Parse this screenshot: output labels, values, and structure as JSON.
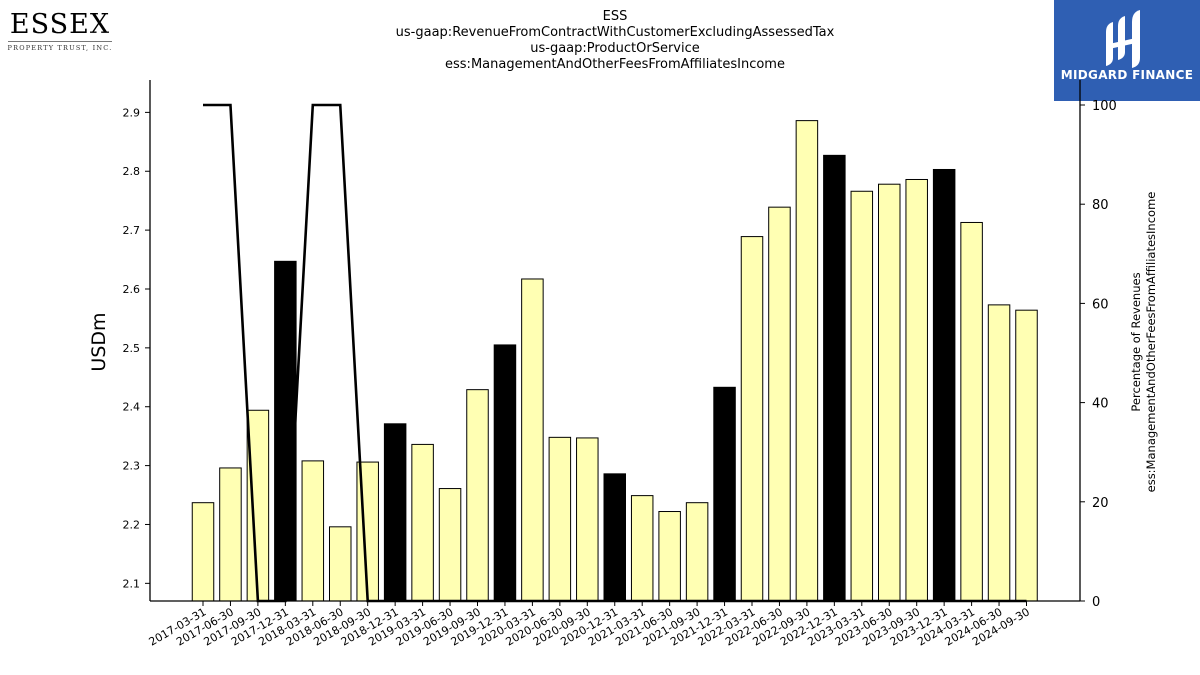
{
  "logos": {
    "left": {
      "wordmark": "ESSEX",
      "tagline": "PROPERTY TRUST, INC."
    },
    "right": {
      "brand": "MIDGARD FINANCE",
      "background": "#2f5fb3"
    }
  },
  "chart_data": {
    "type": "bar",
    "title_lines": [
      "ESS",
      "us-gaap:RevenueFromContractWithCustomerExcludingAssessedTax",
      "us-gaap:ProductOrService",
      "ess:ManagementAndOtherFeesFromAffiliatesIncome"
    ],
    "ylabel": "USDm",
    "y2label_lines": [
      "Percentage of Revenues",
      "ess:ManagementAndOtherFeesFromAffiliatesIncome"
    ],
    "ylim": [
      2.07,
      2.955
    ],
    "y2lim": [
      0,
      100
    ],
    "yticks": [
      2.1,
      2.2,
      2.3,
      2.4,
      2.5,
      2.6,
      2.7,
      2.8,
      2.9
    ],
    "y2ticks": [
      0,
      20,
      40,
      60,
      80,
      100
    ],
    "categories": [
      "2017-03-31",
      "2017-06-30",
      "2017-09-30",
      "2017-12-31",
      "2018-03-31",
      "2018-06-30",
      "2018-09-30",
      "2018-12-31",
      "2019-03-31",
      "2019-06-30",
      "2019-09-30",
      "2019-12-31",
      "2020-03-31",
      "2020-06-30",
      "2020-09-30",
      "2020-12-31",
      "2021-03-31",
      "2021-06-30",
      "2021-09-30",
      "2021-12-31",
      "2022-03-31",
      "2022-06-30",
      "2022-09-30",
      "2022-12-31",
      "2023-03-31",
      "2023-06-30",
      "2023-09-30",
      "2023-12-31",
      "2024-03-31",
      "2024-06-30",
      "2024-09-30"
    ],
    "series": [
      {
        "axis": "left",
        "kind": "bar",
        "values": [
          2.237,
          2.296,
          2.394,
          2.647,
          2.308,
          2.196,
          2.306,
          2.371,
          2.336,
          2.261,
          2.429,
          2.505,
          2.617,
          2.348,
          2.347,
          2.286,
          2.249,
          2.222,
          2.237,
          2.433,
          2.689,
          2.739,
          2.886,
          2.827,
          2.766,
          2.778,
          2.786,
          2.803,
          2.713,
          2.573,
          2.564
        ],
        "fourth_quarter_color": "#000000",
        "other_quarter_color": "#ffffb3"
      },
      {
        "axis": "right",
        "kind": "line",
        "values": [
          100,
          100,
          0,
          0,
          100,
          100,
          0,
          0,
          0,
          0,
          0,
          0,
          0,
          0,
          0,
          0,
          0,
          0,
          0,
          0,
          0,
          0,
          0,
          0,
          0,
          0,
          0,
          0,
          0,
          0,
          0
        ],
        "color": "#000000"
      }
    ],
    "grid": false
  }
}
